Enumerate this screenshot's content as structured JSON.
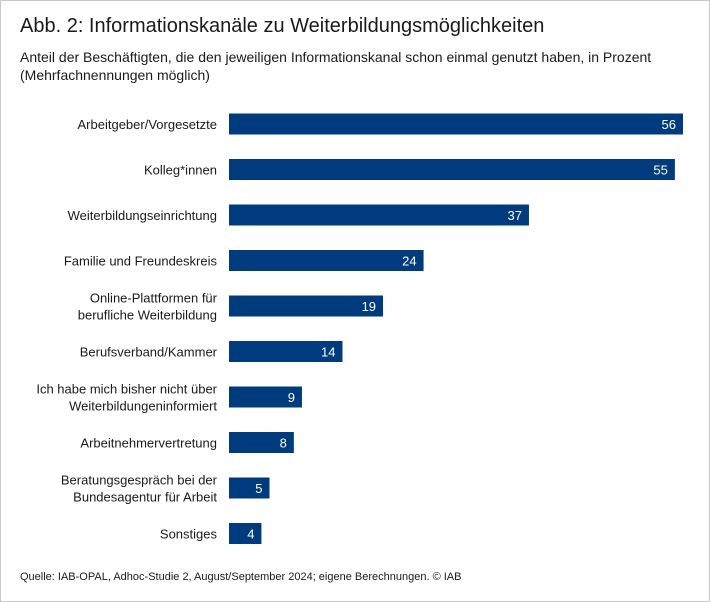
{
  "header": {
    "title": "Abb. 2: Informationskanäle zu Weiterbildungsmöglichkeiten",
    "subtitle": "Anteil der Beschäftigten, die den jeweiligen Informationskanal schon einmal genutzt haben, in Prozent (Mehrfachnennungen möglich)"
  },
  "footer": {
    "source": "Quelle: IAB-OPAL, Adhoc-Studie 2, August/September 2024; eigene Berechnungen.  © IAB"
  },
  "colors": {
    "bar": "#003c7d"
  },
  "chart_data": {
    "type": "bar",
    "orientation": "horizontal",
    "categories": [
      [
        "Arbeitgeber/Vorgesetzte"
      ],
      [
        "Kolleg*innen"
      ],
      [
        "Weiterbildungseinrichtung"
      ],
      [
        "Familie und Freundeskreis"
      ],
      [
        "Online-Plattformen für",
        "berufliche Weiterbildung"
      ],
      [
        "Berufsverband/Kammer"
      ],
      [
        "Ich habe mich bisher nicht über",
        "Weiterbildungeninformiert"
      ],
      [
        "Arbeitnehmervertretung"
      ],
      [
        "Beratungsgespräch bei der",
        "Bundesagentur für Arbeit"
      ],
      [
        "Sonstiges"
      ]
    ],
    "values": [
      56,
      55,
      37,
      24,
      19,
      14,
      9,
      8,
      5,
      4
    ],
    "data_labels": true,
    "xlim": [
      0,
      56
    ],
    "grid": false,
    "legend": "none"
  }
}
